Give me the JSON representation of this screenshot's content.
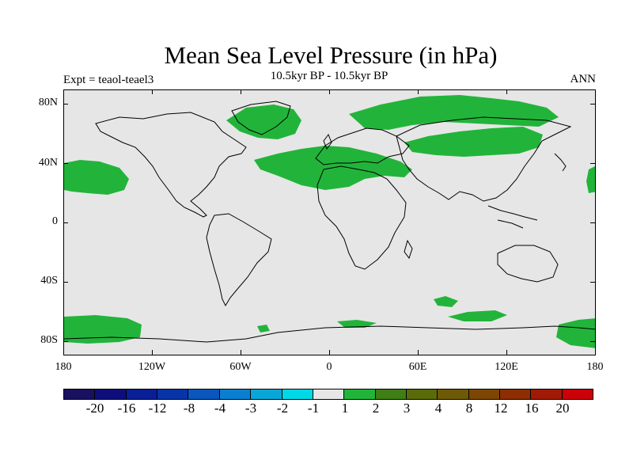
{
  "title": "Mean Sea Level Pressure (in hPa)",
  "left_string": "Expt = teaol-teael3",
  "center_string": "10.5kyr BP - 10.5kyr BP",
  "right_string": "ANN",
  "map": {
    "land_fill": "#e6e6e6",
    "coast_color": "#000000",
    "lat_labels": [
      "80N",
      "40N",
      "0",
      "40S",
      "80S"
    ],
    "lat_values": [
      80,
      40,
      0,
      -40,
      -80
    ],
    "lon_labels": [
      "180",
      "120W",
      "60W",
      "0",
      "60E",
      "120E",
      "180"
    ],
    "lon_values": [
      -180,
      -120,
      -60,
      0,
      60,
      120,
      180
    ],
    "anomaly_color": "#22b43a",
    "anomaly_regions": [
      {
        "name": "North Atlantic / Europe / Asia band",
        "level": "1 to 2"
      },
      {
        "name": "Arctic / Siberia",
        "level": "1 to 2"
      },
      {
        "name": "Subtropical North Pacific (east)",
        "level": "1 to 2"
      },
      {
        "name": "Southern Ocean patches",
        "level": "1 to 2"
      }
    ]
  },
  "colorbar": {
    "colors": [
      "#1a1060",
      "#0e0e7a",
      "#0a1e96",
      "#0834a8",
      "#0a56bc",
      "#0b7fcf",
      "#0aa6d8",
      "#00d8e6",
      "#e6e6e6",
      "#22b43a",
      "#3f7f16",
      "#5a6b0a",
      "#6e5a06",
      "#7e4604",
      "#8c2e02",
      "#a01a06",
      "#cc0008"
    ],
    "labels": [
      "-20",
      "-16",
      "-12",
      "-8",
      "-4",
      "-3",
      "-2",
      "-1",
      "1",
      "2",
      "3",
      "4",
      "8",
      "12",
      "16",
      "20"
    ]
  }
}
